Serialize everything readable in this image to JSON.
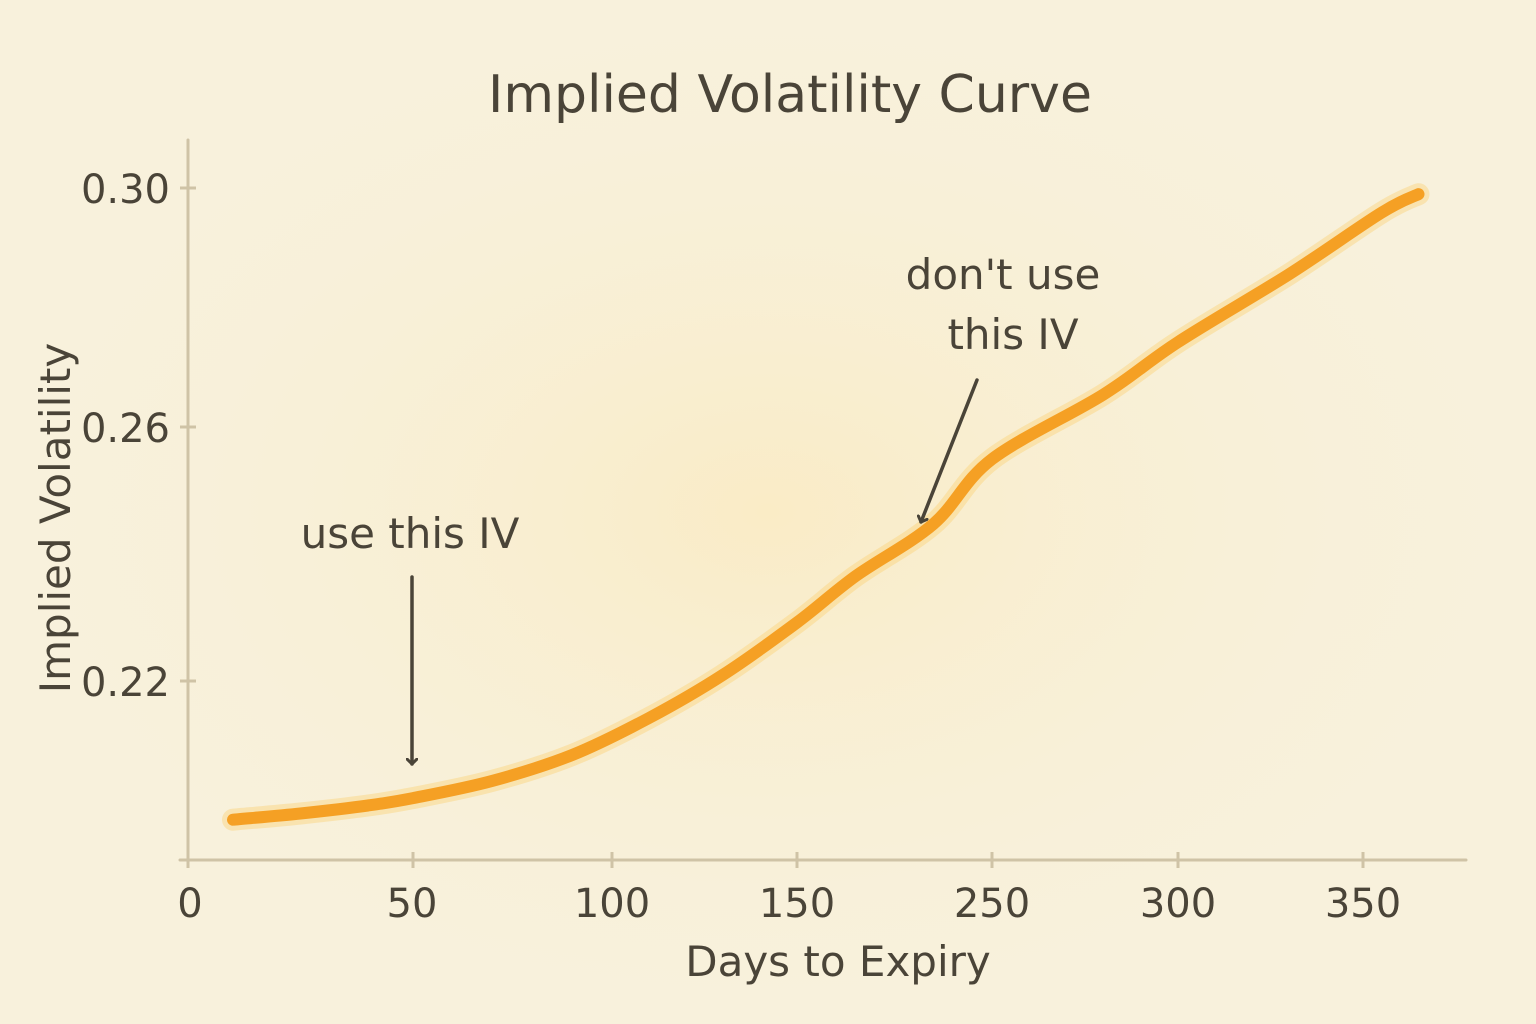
{
  "chart_data": {
    "type": "line",
    "title": "Implied Volatility Curve",
    "xlabel": "Days to Expiry",
    "ylabel": "Implied Volatility",
    "x_ticks": [
      "0",
      "50",
      "100",
      "150",
      "250",
      "300",
      "350"
    ],
    "y_ticks": [
      "0.22",
      "0.26",
      "0.30"
    ],
    "ylim": [
      0.191,
      0.309
    ],
    "grid": false,
    "series": [
      {
        "color": "#f5a024",
        "points": [
          {
            "x": 10,
            "y": 0.1975
          },
          {
            "x": 25,
            "y": 0.1985
          },
          {
            "x": 40,
            "y": 0.1998
          },
          {
            "x": 50,
            "y": 0.201
          },
          {
            "x": 70,
            "y": 0.2038
          },
          {
            "x": 90,
            "y": 0.208
          },
          {
            "x": 110,
            "y": 0.214
          },
          {
            "x": 130,
            "y": 0.221
          },
          {
            "x": 150,
            "y": 0.2295
          },
          {
            "x": 180,
            "y": 0.237
          },
          {
            "x": 220,
            "y": 0.2455
          },
          {
            "x": 250,
            "y": 0.256
          },
          {
            "x": 280,
            "y": 0.2665
          },
          {
            "x": 300,
            "y": 0.275
          },
          {
            "x": 330,
            "y": 0.286
          },
          {
            "x": 355,
            "y": 0.296
          },
          {
            "x": 365,
            "y": 0.299
          }
        ]
      }
    ],
    "annotations": [
      {
        "text": [
          "use this IV"
        ],
        "points_to_x": 50,
        "points_to_y": 0.201
      },
      {
        "text": [
          "don't use",
          "this IV"
        ],
        "points_to_x": 180,
        "points_to_y": 0.237
      }
    ]
  },
  "colors": {
    "background": "#f8f1dc",
    "axis": "#cfc3a6",
    "text": "#4a4438",
    "curve": "#f5a024"
  }
}
